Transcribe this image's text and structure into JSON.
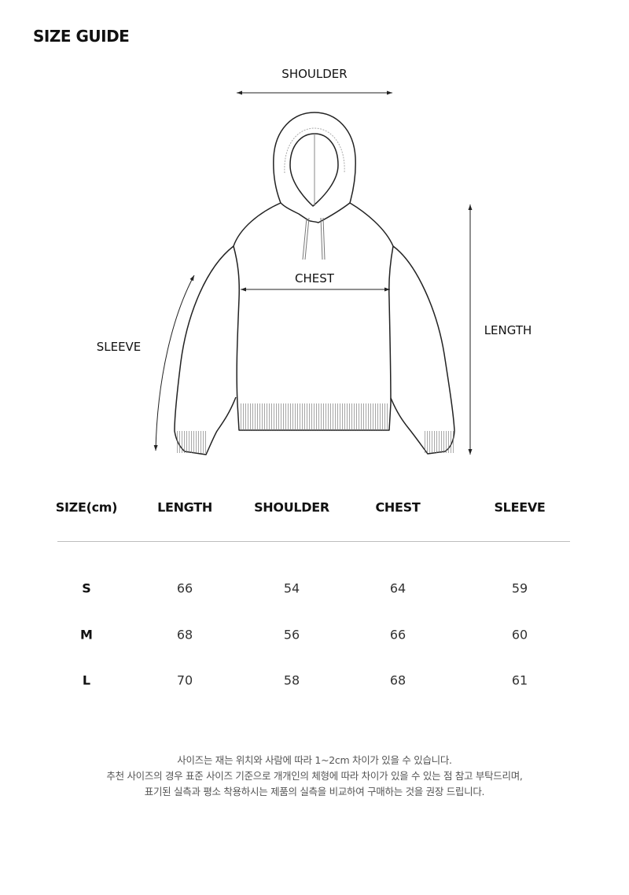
{
  "title": "SIZE GUIDE",
  "diagram": {
    "labels": {
      "shoulder": "SHOULDER",
      "chest": "CHEST",
      "length": "LENGTH",
      "sleeve": "SLEEVE"
    }
  },
  "table": {
    "headers": [
      "SIZE(cm)",
      "LENGTH",
      "SHOULDER",
      "CHEST",
      "SLEEVE"
    ],
    "rows": [
      [
        "S",
        "66",
        "54",
        "64",
        "59"
      ],
      [
        "M",
        "68",
        "56",
        "66",
        "60"
      ],
      [
        "L",
        "70",
        "58",
        "68",
        "61"
      ]
    ]
  },
  "notes": [
    "사이즈는 재는 위치와 사람에 따라 1~2cm 차이가 있을 수 있습니다.",
    "추천 사이즈의 경우 표준 사이즈 기준으로 개개인의 체형에 따라 차이가 있을 수 있는 점 참고 부탁드리며,",
    "표기된 실측과 평소 착용하시는 제품의 실측을 비교하여 구매하는 것을 권장 드립니다."
  ]
}
